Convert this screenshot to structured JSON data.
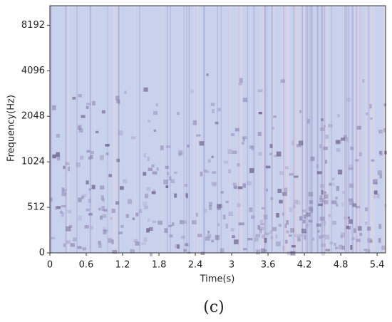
{
  "chart_data": {
    "type": "spectrogram",
    "xlabel": "Time(s)",
    "ylabel": "Frequency(Hz)",
    "xlim": [
      0,
      5.54
    ],
    "xticks": [
      0,
      0.6,
      1.2,
      1.8,
      2.4,
      3,
      3.6,
      4.2,
      4.8,
      5.4
    ],
    "ylim": [
      0,
      11025
    ],
    "yscale": "symlog",
    "linthresh": 512,
    "yticks": [
      0,
      512,
      1024,
      2048,
      4096,
      8192
    ],
    "background_color": "#c9d2ec"
  },
  "caption": "(c)"
}
